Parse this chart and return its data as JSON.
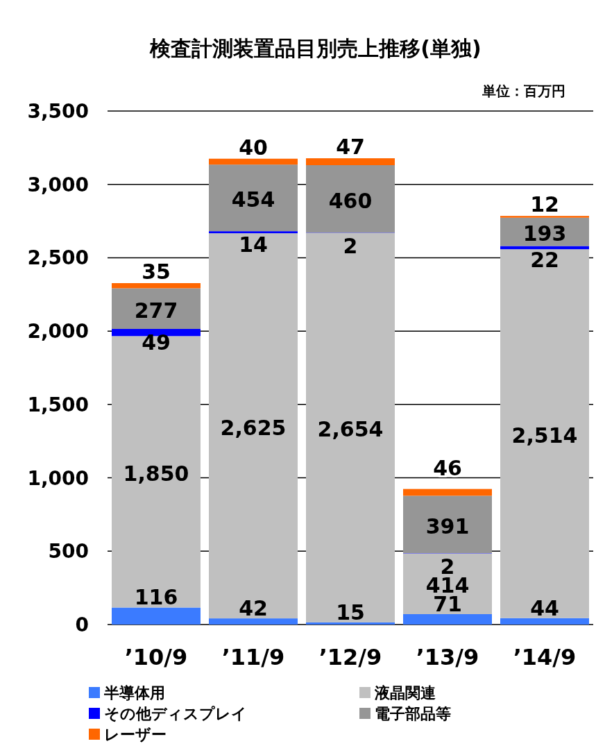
{
  "chart_data": {
    "type": "bar",
    "stacked": true,
    "title": "検査計測装置品目別売上推移(単独)",
    "annotations": [
      "単位：百万円"
    ],
    "categories": [
      "’10/9",
      "’11/9",
      "’12/9",
      "’13/9",
      "’14/9"
    ],
    "series": [
      {
        "name": "半導体用",
        "color": "#3b7bff",
        "values": [
          116,
          42,
          15,
          71,
          44
        ]
      },
      {
        "name": "液晶関連",
        "color": "#c0c0c0",
        "values": [
          1850,
          2625,
          2654,
          414,
          2514
        ],
        "value_labels": [
          "1,850",
          "2,625",
          "2,654",
          "414",
          "2,514"
        ]
      },
      {
        "name": "その他ディスプレイ",
        "color": "#0000ff",
        "values": [
          49,
          14,
          2,
          2,
          22
        ]
      },
      {
        "name": "電子部品等",
        "color": "#969696",
        "values": [
          277,
          454,
          460,
          391,
          193
        ]
      },
      {
        "name": "レーザー",
        "color": "#ff6600",
        "values": [
          35,
          40,
          47,
          46,
          12
        ]
      }
    ],
    "ylim": [
      0,
      3500
    ],
    "yticks": [
      0,
      500,
      {
        "value": 1000,
        "label": "1,000"
      },
      {
        "value": 1500,
        "label": "1,500"
      },
      {
        "value": 2000,
        "label": "2,000"
      },
      {
        "value": 2500,
        "label": "2,500"
      },
      {
        "value": 3000,
        "label": "3,000"
      },
      {
        "value": 3500,
        "label": "3,500"
      }
    ],
    "grid": "y",
    "legend": "bottom",
    "data_labels": true
  }
}
